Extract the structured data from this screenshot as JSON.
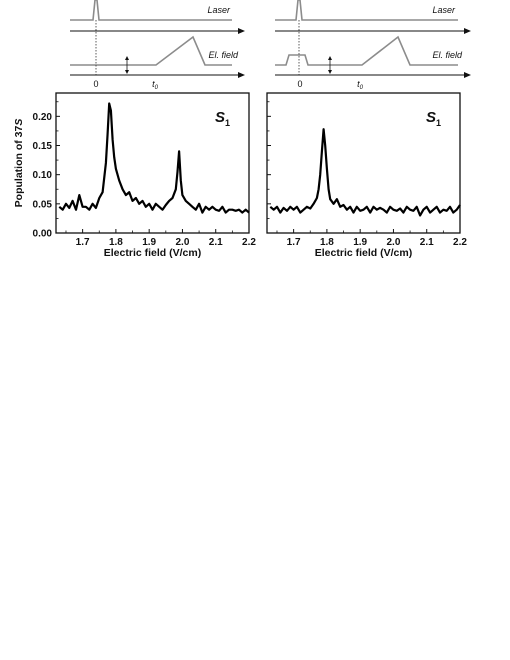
{
  "timing": {
    "laser_label": "Laser",
    "field_label": "El. field",
    "tick_zero": "0",
    "tick_t0": "t",
    "tick_t0_sub": "0"
  },
  "chart_data": [
    {
      "type": "line",
      "panel_label": "S",
      "panel_label_sub": "1",
      "xlabel": "Electric field (V/cm)",
      "ylabel_prefix": "Population of 37",
      "ylabel_italic": "S",
      "xlim": [
        1.62,
        2.2
      ],
      "ylim": [
        0.0,
        0.24
      ],
      "x_ticks": [
        "1.7",
        "1.8",
        "1.9",
        "2.0",
        "2.1",
        "2.2"
      ],
      "y_ticks": [
        "0.00",
        "0.05",
        "0.10",
        "0.15",
        "0.20"
      ],
      "series": [
        {
          "x": [
            1.63,
            1.64,
            1.65,
            1.66,
            1.67,
            1.68,
            1.69,
            1.7,
            1.71,
            1.72,
            1.73,
            1.74,
            1.75,
            1.76,
            1.77,
            1.775,
            1.78,
            1.785,
            1.79,
            1.795,
            1.8,
            1.81,
            1.82,
            1.83,
            1.84,
            1.85,
            1.86,
            1.87,
            1.88,
            1.89,
            1.9,
            1.91,
            1.92,
            1.93,
            1.94,
            1.95,
            1.96,
            1.97,
            1.98,
            1.985,
            1.99,
            1.995,
            2.0,
            2.01,
            2.02,
            2.03,
            2.04,
            2.05,
            2.06,
            2.07,
            2.08,
            2.09,
            2.1,
            2.11,
            2.12,
            2.13,
            2.14,
            2.15,
            2.16,
            2.17,
            2.18,
            2.19,
            2.2
          ],
          "y": [
            0.045,
            0.04,
            0.05,
            0.043,
            0.055,
            0.04,
            0.065,
            0.045,
            0.045,
            0.04,
            0.05,
            0.043,
            0.06,
            0.07,
            0.12,
            0.17,
            0.222,
            0.21,
            0.16,
            0.13,
            0.11,
            0.09,
            0.075,
            0.065,
            0.07,
            0.055,
            0.06,
            0.05,
            0.055,
            0.045,
            0.05,
            0.04,
            0.05,
            0.045,
            0.04,
            0.048,
            0.055,
            0.06,
            0.075,
            0.105,
            0.14,
            0.09,
            0.065,
            0.055,
            0.05,
            0.045,
            0.04,
            0.05,
            0.035,
            0.045,
            0.04,
            0.045,
            0.04,
            0.038,
            0.045,
            0.035,
            0.04,
            0.04,
            0.038,
            0.04,
            0.035,
            0.04,
            0.035
          ]
        }
      ]
    },
    {
      "type": "line",
      "panel_label": "S",
      "panel_label_sub": "1",
      "xlabel": "Electric field (V/cm)",
      "xlim": [
        1.62,
        2.2
      ],
      "ylim": [
        0.0,
        0.24
      ],
      "x_ticks": [
        "1.7",
        "1.8",
        "1.9",
        "2.0",
        "2.1",
        "2.2"
      ],
      "series": [
        {
          "x": [
            1.63,
            1.64,
            1.65,
            1.66,
            1.67,
            1.68,
            1.69,
            1.7,
            1.71,
            1.72,
            1.73,
            1.74,
            1.75,
            1.76,
            1.77,
            1.775,
            1.78,
            1.785,
            1.79,
            1.795,
            1.8,
            1.805,
            1.81,
            1.82,
            1.83,
            1.84,
            1.85,
            1.86,
            1.87,
            1.88,
            1.89,
            1.9,
            1.91,
            1.92,
            1.93,
            1.94,
            1.95,
            1.96,
            1.97,
            1.98,
            1.99,
            2.0,
            2.01,
            2.02,
            2.03,
            2.04,
            2.05,
            2.06,
            2.07,
            2.08,
            2.09,
            2.1,
            2.11,
            2.12,
            2.13,
            2.14,
            2.15,
            2.16,
            2.17,
            2.18,
            2.19,
            2.2
          ],
          "y": [
            0.045,
            0.04,
            0.045,
            0.035,
            0.043,
            0.038,
            0.045,
            0.04,
            0.045,
            0.035,
            0.04,
            0.045,
            0.042,
            0.05,
            0.06,
            0.075,
            0.1,
            0.14,
            0.178,
            0.15,
            0.11,
            0.075,
            0.058,
            0.05,
            0.058,
            0.045,
            0.048,
            0.04,
            0.045,
            0.035,
            0.045,
            0.038,
            0.04,
            0.045,
            0.035,
            0.045,
            0.04,
            0.043,
            0.04,
            0.035,
            0.045,
            0.04,
            0.038,
            0.042,
            0.035,
            0.045,
            0.04,
            0.038,
            0.045,
            0.03,
            0.04,
            0.045,
            0.035,
            0.04,
            0.045,
            0.035,
            0.04,
            0.038,
            0.045,
            0.035,
            0.04,
            0.048
          ]
        }
      ]
    }
  ]
}
